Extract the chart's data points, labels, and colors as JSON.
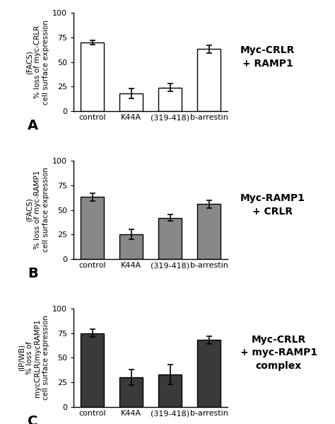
{
  "panels": [
    {
      "label": "A",
      "ylabel_top": "(FACS)",
      "ylabel_bottom": "% loss of myc-CRLR\ncell surface expression",
      "categories": [
        "control",
        "K44A",
        "(319-418)",
        "b-arrestin"
      ],
      "values": [
        70,
        18,
        24,
        63
      ],
      "errors": [
        2,
        5,
        4,
        4
      ],
      "bar_color": "#ffffff",
      "bar_edgecolor": "#000000",
      "annotation": "Myc-CRLR\n+ RAMP1",
      "ylim": [
        0,
        100
      ],
      "yticks": [
        0,
        25,
        50,
        75,
        100
      ]
    },
    {
      "label": "B",
      "ylabel_top": "(FACS)",
      "ylabel_bottom": "% loss of myc-RAMP1\ncell surface expression",
      "categories": [
        "control",
        "K44A",
        "(319-418)",
        "b-arrestin"
      ],
      "values": [
        63,
        25,
        42,
        56
      ],
      "errors": [
        4,
        5,
        3,
        4
      ],
      "bar_color": "#888888",
      "bar_edgecolor": "#000000",
      "annotation": "Myc-RAMP1\n+ CRLR",
      "ylim": [
        0,
        100
      ],
      "yticks": [
        0,
        25,
        50,
        75,
        100
      ]
    },
    {
      "label": "C",
      "ylabel_top": "(IP/WB)",
      "ylabel_bottom": "% loss of\nmycCRLR/mycRAMP1\ncell surface expression",
      "categories": [
        "control",
        "K44A",
        "(319-418)",
        "b-arrestin"
      ],
      "values": [
        75,
        30,
        33,
        68
      ],
      "errors": [
        4,
        8,
        10,
        4
      ],
      "bar_color": "#3a3a3a",
      "bar_edgecolor": "#000000",
      "annotation": "Myc-CRLR\n+ myc-RAMP1\ncomplex",
      "ylim": [
        0,
        100
      ],
      "yticks": [
        0,
        25,
        50,
        75,
        100
      ]
    }
  ],
  "bg_color": "#ffffff",
  "annotation_fontsize": 10,
  "label_fontsize": 14,
  "tick_fontsize": 8,
  "ylabel_fontsize": 7.5
}
